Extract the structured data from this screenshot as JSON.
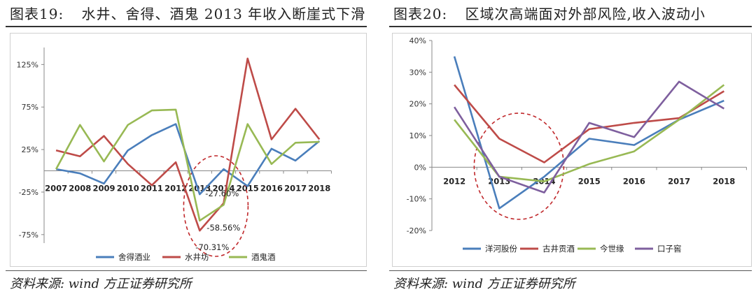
{
  "left": {
    "title_prefix": "图表19:",
    "title_text": "水井、舍得、酒鬼 2013 年收入断崖式下滑",
    "source": "资料来源: wind  方正证券研究所",
    "chart_data": {
      "type": "line",
      "categories": [
        "2007",
        "2008",
        "2009",
        "2010",
        "2011",
        "2012",
        "2013",
        "2014",
        "2015",
        "2016",
        "2017",
        "2018"
      ],
      "ylim": [
        -0.85,
        1.45
      ],
      "yticks": [
        -0.75,
        -0.25,
        0.25,
        0.75,
        1.25
      ],
      "ytick_labels": [
        "-75%",
        "-25%",
        "25%",
        "75%",
        "125%"
      ],
      "series": [
        {
          "name": "舍得酒业",
          "color": "#4a7ebb",
          "values": [
            0.02,
            -0.03,
            -0.15,
            0.24,
            0.42,
            0.55,
            -0.276,
            0.02,
            -0.18,
            0.26,
            0.12,
            0.35
          ]
        },
        {
          "name": "水井坊",
          "color": "#be4b48",
          "values": [
            0.24,
            0.17,
            0.41,
            0.08,
            -0.17,
            0.1,
            -0.7031,
            -0.38,
            1.32,
            0.37,
            0.73,
            0.37
          ]
        },
        {
          "name": "酒鬼酒",
          "color": "#98b954",
          "values": [
            0.02,
            0.54,
            0.11,
            0.54,
            0.71,
            0.72,
            -0.5856,
            -0.4,
            0.55,
            0.08,
            0.33,
            0.34
          ]
        }
      ],
      "annotations": [
        {
          "text": "-27.60%",
          "x": "2013",
          "y": -0.276
        },
        {
          "text": "-58.56%",
          "x": "2013",
          "y": -0.5856
        },
        {
          "text": "-70.31%",
          "x": "2013",
          "y": -0.7031
        }
      ],
      "highlight": {
        "from": "2013",
        "to": "2014"
      },
      "legend_position": "bottom"
    }
  },
  "right": {
    "title_prefix": "图表20:",
    "title_text": "区域次高端面对外部风险,收入波动小",
    "source": "资料来源: wind  方正证券研究所",
    "chart_data": {
      "type": "line",
      "categories": [
        "2012",
        "2013",
        "2014",
        "2015",
        "2016",
        "2017",
        "2018"
      ],
      "ylim": [
        -0.2,
        0.4
      ],
      "yticks": [
        -0.2,
        -0.1,
        0.0,
        0.1,
        0.2,
        0.3,
        0.4
      ],
      "ytick_labels": [
        "-20%",
        "-10%",
        "0%",
        "10%",
        "20%",
        "30%",
        "40%"
      ],
      "series": [
        {
          "name": "洋河股份",
          "color": "#4a7ebb",
          "values": [
            0.35,
            -0.13,
            -0.03,
            0.09,
            0.07,
            0.15,
            0.21
          ]
        },
        {
          "name": "古井贡酒",
          "color": "#be4b48",
          "values": [
            0.26,
            0.09,
            0.015,
            0.12,
            0.14,
            0.155,
            0.24
          ]
        },
        {
          "name": "今世缘",
          "color": "#98b954",
          "values": [
            0.15,
            -0.03,
            -0.045,
            0.01,
            0.05,
            0.15,
            0.26
          ]
        },
        {
          "name": "口子窖",
          "color": "#7e5f9e",
          "values": [
            0.19,
            -0.03,
            -0.08,
            0.14,
            0.095,
            0.27,
            0.185
          ]
        }
      ],
      "highlight": {
        "from": "2013",
        "to": "2014"
      },
      "legend_position": "bottom"
    }
  }
}
